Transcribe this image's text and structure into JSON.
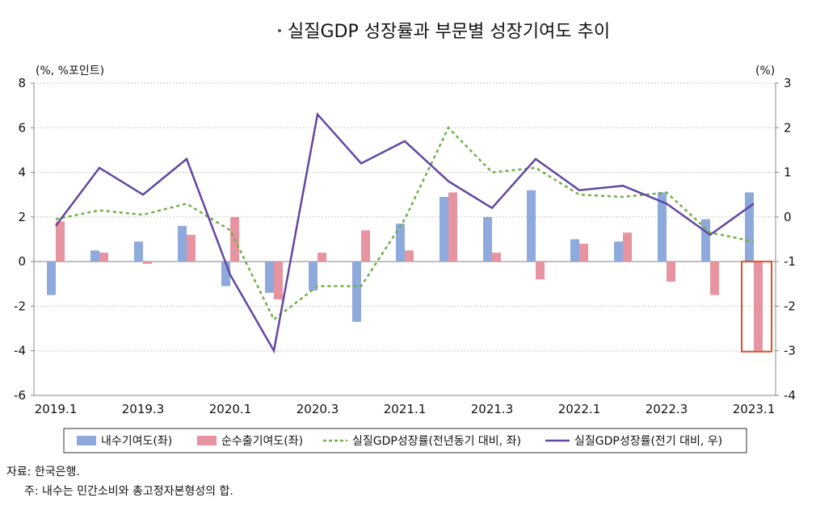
{
  "chart_data": {
    "type": "bar",
    "title": "실질GDP 성장률과 부문별 성장기여도 추이",
    "left_axis_unit": "(%, %포인트)",
    "right_axis_unit": "(%)",
    "categories": [
      "2019.1",
      "2019.2",
      "2019.3",
      "2019.4",
      "2020.1",
      "2020.2",
      "2020.3",
      "2020.4",
      "2021.1",
      "2021.2",
      "2021.3",
      "2021.4",
      "2022.1",
      "2022.2",
      "2022.3",
      "2022.4",
      "2023.1"
    ],
    "x_tick_labels": [
      "2019.1",
      "2019.3",
      "2020.1",
      "2020.3",
      "2021.1",
      "2021.3",
      "2022.1",
      "2022.3",
      "2023.1"
    ],
    "ylim_left": [
      -6,
      8
    ],
    "yticks_left": [
      "8",
      "6",
      "4",
      "2",
      "0",
      "-2",
      "-4",
      "-6"
    ],
    "ylim_right": [
      -4,
      3
    ],
    "yticks_right": [
      "3",
      "2",
      "1",
      "0",
      "-1",
      "-2",
      "-3",
      "-4"
    ],
    "grid": true,
    "legend_position": "bottom",
    "series": [
      {
        "name": "내수기여도(좌)",
        "type": "bar",
        "axis": "left",
        "color": "#8EA9DB",
        "values": [
          -1.5,
          0.5,
          0.9,
          1.6,
          -1.1,
          -1.4,
          -1.3,
          -2.7,
          1.7,
          2.9,
          2.0,
          3.2,
          1.0,
          0.9,
          3.1,
          1.9,
          3.1
        ]
      },
      {
        "name": "순수출기여도(좌)",
        "type": "bar",
        "axis": "left",
        "color": "#E6949F",
        "values": [
          1.8,
          0.4,
          -0.1,
          1.2,
          2.0,
          -1.7,
          0.4,
          1.4,
          0.5,
          3.1,
          0.4,
          -0.8,
          0.8,
          1.3,
          -0.9,
          -1.5,
          -4.0
        ]
      },
      {
        "name": "실질GDP성장률(전년동기 대비, 좌)",
        "type": "line",
        "axis": "left",
        "dash": true,
        "color": "#70AD47",
        "values": [
          1.9,
          2.3,
          2.1,
          2.6,
          1.4,
          -2.6,
          -1.1,
          -1.1,
          1.9,
          6.0,
          4.0,
          4.2,
          3.0,
          2.9,
          3.1,
          1.3,
          0.9
        ]
      },
      {
        "name": "실질GDP성장률(전기 대비, 우)",
        "type": "line",
        "axis": "right",
        "color": "#6247A0",
        "values": [
          -0.2,
          1.1,
          0.5,
          1.3,
          -1.3,
          -3.0,
          2.3,
          1.2,
          1.7,
          0.8,
          0.2,
          1.3,
          0.6,
          0.7,
          0.3,
          -0.4,
          0.3
        ]
      }
    ],
    "highlight_category": "2023.1",
    "highlight_color": "#E04B2A"
  },
  "notes": {
    "source": "자료: 한국은행.",
    "note": "주: 내수는 민간소비와 총고정자본형성의 합."
  }
}
